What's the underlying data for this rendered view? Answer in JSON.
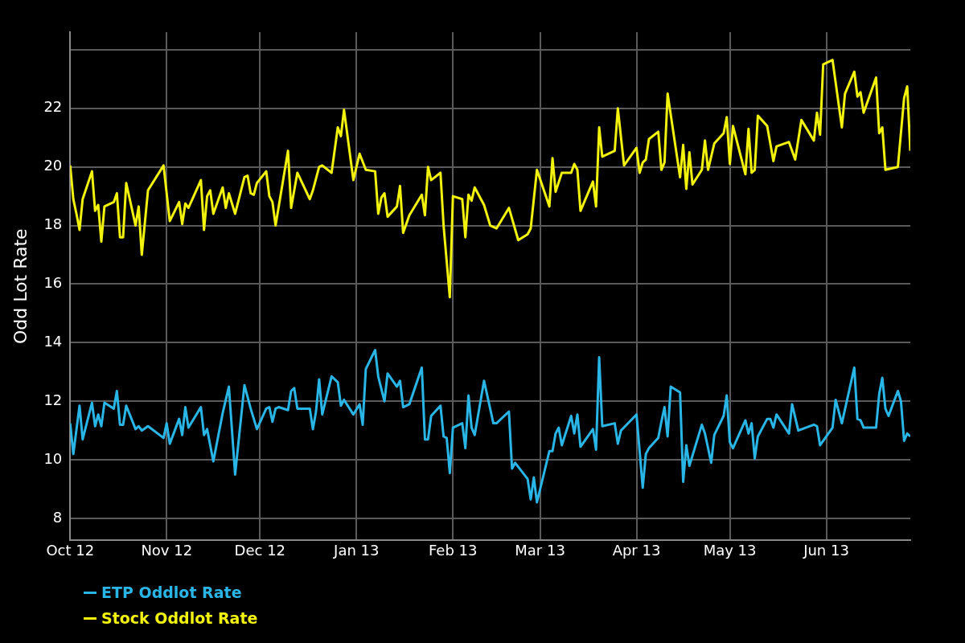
{
  "chart_data": {
    "type": "line",
    "ylabel": "Odd Lot Rate",
    "legend": "bottom",
    "grid": true,
    "xlim": [
      "2012-10-01",
      "2013-06-28"
    ],
    "xticks": [
      {
        "value": "2012-10-01",
        "label": "Oct 12"
      },
      {
        "value": "2012-11-01",
        "label": "Nov 12"
      },
      {
        "value": "2012-12-01",
        "label": "Dec 12"
      },
      {
        "value": "2013-01-01",
        "label": "Jan 13"
      },
      {
        "value": "2013-02-01",
        "label": "Feb 13"
      },
      {
        "value": "2013-03-01",
        "label": "Mar 13"
      },
      {
        "value": "2013-04-01",
        "label": "Apr 13"
      },
      {
        "value": "2013-05-01",
        "label": "May 13"
      },
      {
        "value": "2013-06-01",
        "label": "Jun 13"
      }
    ],
    "ylim": [
      7.25,
      24.6
    ],
    "yticks": [
      8,
      10,
      12,
      14,
      16,
      18,
      20,
      22,
      {
        "value": 24,
        "label": null
      }
    ],
    "series": [
      {
        "name": "ETP Oddlot Rate",
        "color": "#29b6e6",
        "x": [
          "2012-10-01",
          "2012-10-02",
          "2012-10-04",
          "2012-10-05",
          "2012-10-08",
          "2012-10-09",
          "2012-10-10",
          "2012-10-11",
          "2012-10-12",
          "2012-10-15",
          "2012-10-16",
          "2012-10-17",
          "2012-10-18",
          "2012-10-19",
          "2012-10-22",
          "2012-10-23",
          "2012-10-24",
          "2012-10-26",
          "2012-10-31",
          "2012-11-01",
          "2012-11-02",
          "2012-11-05",
          "2012-11-06",
          "2012-11-07",
          "2012-11-08",
          "2012-11-12",
          "2012-11-13",
          "2012-11-14",
          "2012-11-16",
          "2012-11-19",
          "2012-11-21",
          "2012-11-23",
          "2012-11-26",
          "2012-11-28",
          "2012-11-30",
          "2012-12-03",
          "2012-12-04",
          "2012-12-05",
          "2012-12-06",
          "2012-12-07",
          "2012-12-10",
          "2012-12-11",
          "2012-12-12",
          "2012-12-13",
          "2012-12-17",
          "2012-12-18",
          "2012-12-19",
          "2012-12-20",
          "2012-12-21",
          "2012-12-24",
          "2012-12-26",
          "2012-12-27",
          "2012-12-28",
          "2012-12-31",
          "2013-01-02",
          "2013-01-03",
          "2013-01-04",
          "2013-01-07",
          "2013-01-08",
          "2013-01-10",
          "2013-01-11",
          "2013-01-14",
          "2013-01-15",
          "2013-01-16",
          "2013-01-18",
          "2013-01-22",
          "2013-01-23",
          "2013-01-24",
          "2013-01-25",
          "2013-01-28",
          "2013-01-29",
          "2013-01-30",
          "2013-01-31",
          "2013-02-01",
          "2013-02-04",
          "2013-02-05",
          "2013-02-06",
          "2013-02-07",
          "2013-02-08",
          "2013-02-11",
          "2013-02-14",
          "2013-02-15",
          "2013-02-19",
          "2013-02-20",
          "2013-02-21",
          "2013-02-25",
          "2013-02-26",
          "2013-02-27",
          "2013-02-28",
          "2013-03-04",
          "2013-03-05",
          "2013-03-06",
          "2013-03-07",
          "2013-03-08",
          "2013-03-11",
          "2013-03-12",
          "2013-03-13",
          "2013-03-14",
          "2013-03-18",
          "2013-03-19",
          "2013-03-20",
          "2013-03-21",
          "2013-03-25",
          "2013-03-26",
          "2013-03-27",
          "2013-04-01",
          "2013-04-03",
          "2013-04-04",
          "2013-04-05",
          "2013-04-08",
          "2013-04-09",
          "2013-04-10",
          "2013-04-11",
          "2013-04-12",
          "2013-04-15",
          "2013-04-16",
          "2013-04-17",
          "2013-04-18",
          "2013-04-22",
          "2013-04-23",
          "2013-04-25",
          "2013-04-26",
          "2013-04-29",
          "2013-04-30",
          "2013-05-01",
          "2013-05-02",
          "2013-05-06",
          "2013-05-07",
          "2013-05-08",
          "2013-05-09",
          "2013-05-10",
          "2013-05-13",
          "2013-05-14",
          "2013-05-15",
          "2013-05-16",
          "2013-05-20",
          "2013-05-21",
          "2013-05-23",
          "2013-05-28",
          "2013-05-29",
          "2013-05-30",
          "2013-06-03",
          "2013-06-04",
          "2013-06-06",
          "2013-06-10",
          "2013-06-11",
          "2013-06-12",
          "2013-06-13",
          "2013-06-17",
          "2013-06-18",
          "2013-06-19",
          "2013-06-20",
          "2013-06-21",
          "2013-06-24",
          "2013-06-25",
          "2013-06-26",
          "2013-06-27",
          "2013-06-28"
        ],
        "values": [
          11.25,
          10.2,
          11.85,
          10.7,
          11.95,
          11.15,
          11.55,
          11.15,
          11.95,
          11.75,
          12.35,
          11.2,
          11.2,
          11.85,
          11.05,
          11.15,
          11.0,
          11.15,
          10.75,
          11.25,
          10.55,
          11.4,
          10.85,
          11.8,
          11.1,
          11.8,
          10.85,
          11.05,
          9.95,
          11.6,
          12.5,
          9.5,
          12.55,
          11.75,
          11.05,
          11.75,
          11.8,
          11.3,
          11.75,
          11.8,
          11.7,
          12.35,
          12.45,
          11.75,
          11.75,
          11.05,
          11.65,
          12.75,
          11.55,
          12.85,
          12.65,
          11.85,
          12.05,
          11.55,
          11.9,
          11.2,
          13.1,
          13.75,
          12.85,
          12.0,
          12.95,
          12.5,
          12.7,
          11.8,
          11.9,
          13.15,
          10.7,
          10.7,
          11.5,
          11.85,
          10.8,
          10.75,
          9.55,
          11.1,
          11.25,
          10.4,
          12.2,
          11.1,
          10.85,
          12.7,
          11.25,
          11.25,
          11.65,
          9.7,
          9.9,
          9.35,
          8.65,
          9.4,
          8.55,
          10.3,
          10.3,
          10.9,
          11.1,
          10.5,
          11.5,
          10.9,
          11.55,
          10.45,
          11.05,
          10.35,
          13.5,
          11.15,
          11.25,
          10.55,
          11.0,
          11.55,
          9.05,
          10.2,
          10.4,
          10.75,
          11.3,
          11.8,
          10.8,
          12.5,
          12.3,
          9.25,
          10.5,
          9.8,
          11.2,
          10.9,
          9.9,
          10.85,
          11.5,
          12.2,
          10.6,
          10.4,
          11.35,
          10.9,
          11.25,
          10.05,
          10.8,
          11.4,
          11.4,
          11.1,
          11.55,
          10.9,
          11.9,
          11.0,
          11.2,
          11.15,
          10.5,
          11.1,
          12.05,
          11.25,
          13.15,
          11.4,
          11.35,
          11.1,
          11.1,
          12.25,
          12.8,
          11.75,
          11.5,
          12.35,
          12.0,
          10.65,
          10.9,
          10.8
        ]
      },
      {
        "name": "Stock Oddlot Rate",
        "color": "#f2f20d",
        "x": [
          "2012-10-01",
          "2012-10-02",
          "2012-10-03",
          "2012-10-04",
          "2012-10-05",
          "2012-10-08",
          "2012-10-09",
          "2012-10-10",
          "2012-10-11",
          "2012-10-12",
          "2012-10-15",
          "2012-10-16",
          "2012-10-17",
          "2012-10-18",
          "2012-10-19",
          "2012-10-22",
          "2012-10-23",
          "2012-10-24",
          "2012-10-26",
          "2012-10-31",
          "2012-11-02",
          "2012-11-05",
          "2012-11-06",
          "2012-11-07",
          "2012-11-08",
          "2012-11-12",
          "2012-11-13",
          "2012-11-14",
          "2012-11-15",
          "2012-11-16",
          "2012-11-19",
          "2012-11-20",
          "2012-11-21",
          "2012-11-23",
          "2012-11-26",
          "2012-11-27",
          "2012-11-28",
          "2012-11-29",
          "2012-11-30",
          "2012-12-03",
          "2012-12-04",
          "2012-12-05",
          "2012-12-06",
          "2012-12-10",
          "2012-12-11",
          "2012-12-13",
          "2012-12-17",
          "2012-12-18",
          "2012-12-20",
          "2012-12-21",
          "2012-12-24",
          "2012-12-26",
          "2012-12-27",
          "2012-12-28",
          "2012-12-31",
          "2013-01-02",
          "2013-01-04",
          "2013-01-07",
          "2013-01-08",
          "2013-01-09",
          "2013-01-10",
          "2013-01-11",
          "2013-01-14",
          "2013-01-15",
          "2013-01-16",
          "2013-01-18",
          "2013-01-22",
          "2013-01-23",
          "2013-01-24",
          "2013-01-25",
          "2013-01-28",
          "2013-01-29",
          "2013-01-31",
          "2013-02-01",
          "2013-02-04",
          "2013-02-05",
          "2013-02-06",
          "2013-02-07",
          "2013-02-08",
          "2013-02-11",
          "2013-02-13",
          "2013-02-15",
          "2013-02-19",
          "2013-02-22",
          "2013-02-25",
          "2013-02-26",
          "2013-02-28",
          "2013-03-04",
          "2013-03-05",
          "2013-03-06",
          "2013-03-08",
          "2013-03-11",
          "2013-03-12",
          "2013-03-13",
          "2013-03-14",
          "2013-03-18",
          "2013-03-19",
          "2013-03-20",
          "2013-03-21",
          "2013-03-25",
          "2013-03-26",
          "2013-03-28",
          "2013-04-01",
          "2013-04-02",
          "2013-04-03",
          "2013-04-04",
          "2013-04-05",
          "2013-04-08",
          "2013-04-09",
          "2013-04-10",
          "2013-04-11",
          "2013-04-15",
          "2013-04-16",
          "2013-04-17",
          "2013-04-18",
          "2013-04-19",
          "2013-04-22",
          "2013-04-23",
          "2013-04-24",
          "2013-04-26",
          "2013-04-29",
          "2013-04-30",
          "2013-05-01",
          "2013-05-02",
          "2013-05-06",
          "2013-05-07",
          "2013-05-08",
          "2013-05-09",
          "2013-05-10",
          "2013-05-13",
          "2013-05-15",
          "2013-05-16",
          "2013-05-20",
          "2013-05-22",
          "2013-05-24",
          "2013-05-28",
          "2013-05-29",
          "2013-05-30",
          "2013-05-31",
          "2013-06-03",
          "2013-06-06",
          "2013-06-07",
          "2013-06-10",
          "2013-06-11",
          "2013-06-12",
          "2013-06-13",
          "2013-06-17",
          "2013-06-18",
          "2013-06-19",
          "2013-06-20",
          "2013-06-24",
          "2013-06-26",
          "2013-06-27",
          "2013-06-28"
        ],
        "values": [
          20.05,
          18.9,
          18.4,
          17.85,
          18.9,
          19.85,
          18.5,
          18.7,
          17.45,
          18.65,
          18.8,
          19.1,
          17.6,
          17.6,
          19.45,
          18.0,
          18.65,
          17.0,
          19.2,
          20.05,
          18.15,
          18.8,
          18.05,
          18.75,
          18.6,
          19.55,
          17.85,
          19.0,
          19.2,
          18.4,
          19.3,
          18.6,
          19.1,
          18.4,
          19.65,
          19.7,
          19.1,
          19.05,
          19.45,
          19.85,
          19.0,
          18.8,
          18.0,
          20.55,
          18.6,
          19.8,
          18.9,
          19.2,
          20.0,
          20.05,
          19.8,
          21.35,
          21.05,
          21.95,
          19.55,
          20.45,
          19.9,
          19.85,
          18.4,
          18.95,
          19.1,
          18.3,
          18.65,
          19.35,
          17.75,
          18.35,
          19.05,
          18.35,
          20.0,
          19.55,
          19.8,
          18.0,
          15.55,
          19.0,
          18.9,
          17.6,
          19.05,
          18.85,
          19.3,
          18.7,
          18.0,
          17.9,
          18.6,
          17.5,
          17.7,
          17.9,
          19.9,
          18.65,
          20.3,
          19.15,
          19.8,
          19.8,
          20.1,
          19.9,
          18.5,
          19.5,
          18.65,
          21.35,
          20.35,
          20.55,
          22.0,
          20.05,
          20.65,
          19.8,
          20.15,
          20.25,
          20.95,
          21.2,
          19.9,
          20.15,
          22.5,
          19.65,
          20.75,
          19.25,
          20.5,
          19.4,
          19.9,
          20.9,
          19.9,
          20.8,
          21.15,
          21.7,
          20.1,
          21.4,
          19.75,
          21.3,
          19.8,
          19.9,
          21.75,
          21.4,
          20.2,
          20.7,
          20.85,
          20.25,
          21.6,
          20.9,
          21.85,
          21.1,
          23.5,
          23.65,
          21.35,
          22.5,
          23.25,
          22.4,
          22.55,
          21.85,
          23.05,
          21.15,
          21.35,
          19.9,
          20.0,
          22.35,
          22.75,
          20.55
        ]
      }
    ]
  }
}
